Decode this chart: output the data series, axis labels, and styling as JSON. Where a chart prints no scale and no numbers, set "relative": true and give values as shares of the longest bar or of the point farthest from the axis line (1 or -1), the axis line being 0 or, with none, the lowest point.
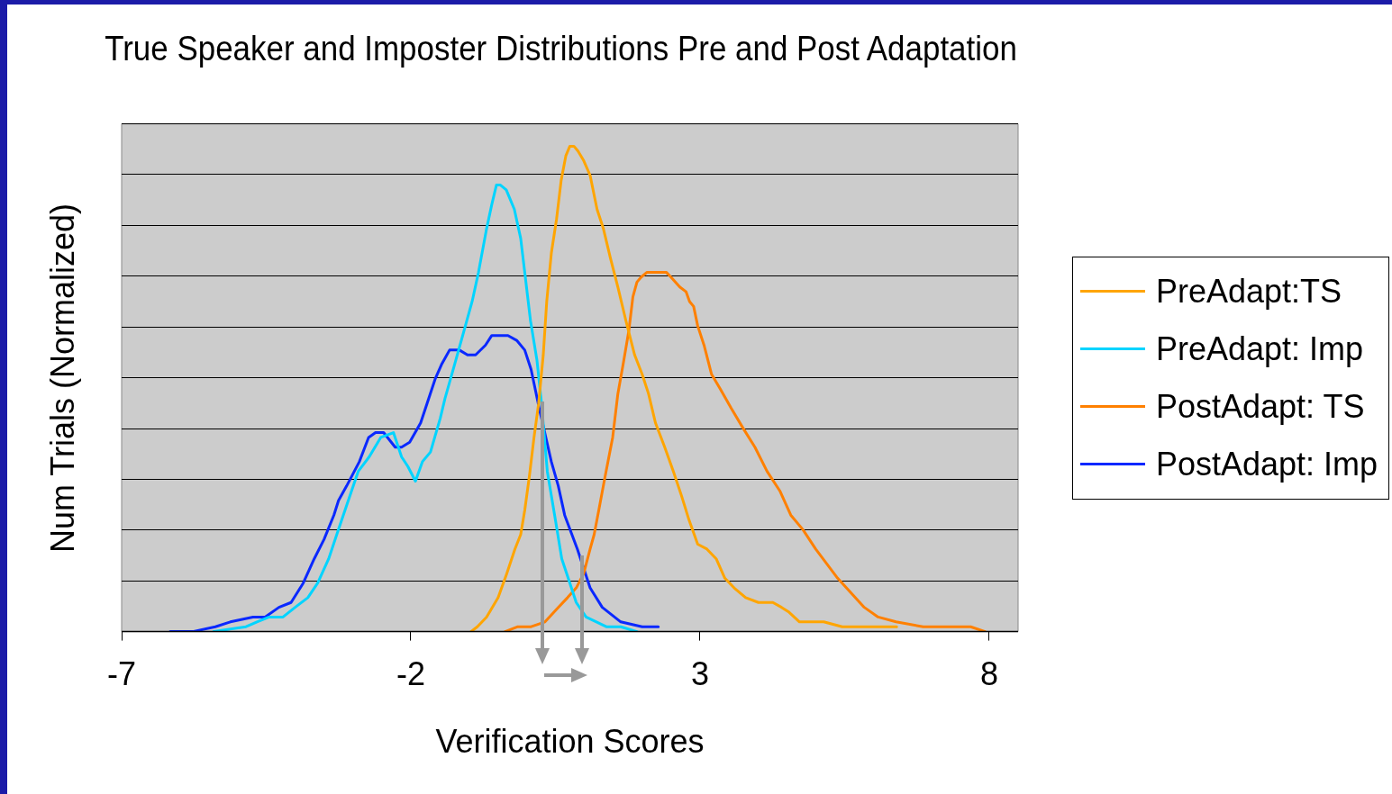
{
  "chart_data": {
    "type": "line",
    "title": "True Speaker and Imposter Distributions Pre and Post Adaptation",
    "xlabel": "Verification Scores",
    "ylabel": "Num Trials (Normalized)",
    "relative": true,
    "xlim": [
      -7,
      8.5
    ],
    "xticks": [
      -7,
      -2,
      3,
      8
    ],
    "grid": "y",
    "legend": "right",
    "marker": "none",
    "line_style": "solid",
    "series": [
      {
        "name": "PreAdapt:TS",
        "color": "#ffa500",
        "x": [
          -0.96,
          -0.85,
          -0.69,
          -0.49,
          -0.34,
          -0.2,
          -0.1,
          -0.03,
          0.05,
          0.13,
          0.21,
          0.29,
          0.35,
          0.43,
          0.52,
          0.6,
          0.68,
          0.75,
          0.82,
          0.89,
          0.99,
          1.1,
          1.22,
          1.33,
          1.45,
          1.58,
          1.72,
          1.87,
          2.0,
          2.11,
          2.23,
          2.39,
          2.54,
          2.68,
          2.81,
          2.96,
          3.12,
          3.28,
          3.43,
          3.59,
          3.79,
          4.01,
          4.26,
          4.41,
          4.54,
          4.72,
          4.91,
          5.14,
          5.46,
          5.77,
          6.08,
          6.23,
          6.4
        ],
        "values": [
          0,
          0.01,
          0.03,
          0.07,
          0.12,
          0.17,
          0.2,
          0.25,
          0.32,
          0.4,
          0.47,
          0.57,
          0.68,
          0.78,
          0.85,
          0.93,
          0.98,
          1,
          1,
          0.99,
          0.97,
          0.94,
          0.87,
          0.83,
          0.77,
          0.71,
          0.64,
          0.57,
          0.53,
          0.49,
          0.43,
          0.38,
          0.33,
          0.28,
          0.23,
          0.18,
          0.17,
          0.15,
          0.11,
          0.09,
          0.07,
          0.06,
          0.06,
          0.05,
          0.04,
          0.02,
          0.02,
          0.02,
          0.01,
          0.01,
          0.01,
          0.01,
          0.01
        ]
      },
      {
        "name": "PreAdapt: Imp",
        "color": "#00d4ff",
        "x": [
          -5.41,
          -4.85,
          -4.66,
          -4.45,
          -4.21,
          -4.0,
          -3.78,
          -3.61,
          -3.42,
          -3.28,
          -3.11,
          -2.91,
          -2.72,
          -2.52,
          -2.3,
          -2.16,
          -2.05,
          -1.92,
          -1.8,
          -1.66,
          -1.49,
          -1.41,
          -1.22,
          -1.08,
          -0.94,
          -0.83,
          -0.69,
          -0.6,
          -0.52,
          -0.45,
          -0.35,
          -0.21,
          -0.1,
          -0.03,
          0.07,
          0.18,
          0.26,
          0.36,
          0.5,
          0.61,
          0.75,
          0.86,
          1.03,
          1.38,
          1.63,
          1.91
        ],
        "values": [
          0,
          0.01,
          0.02,
          0.03,
          0.03,
          0.05,
          0.07,
          0.1,
          0.15,
          0.2,
          0.26,
          0.33,
          0.36,
          0.4,
          0.41,
          0.36,
          0.34,
          0.31,
          0.35,
          0.37,
          0.44,
          0.48,
          0.56,
          0.62,
          0.68,
          0.74,
          0.83,
          0.88,
          0.92,
          0.92,
          0.91,
          0.87,
          0.81,
          0.74,
          0.64,
          0.56,
          0.47,
          0.33,
          0.23,
          0.15,
          0.1,
          0.06,
          0.03,
          0.01,
          0.01,
          0
        ]
      },
      {
        "name": "PostAdapt: TS",
        "color": "#ff8000",
        "x": [
          -0.37,
          -0.15,
          0.08,
          0.32,
          0.55,
          0.71,
          0.86,
          0.99,
          1.1,
          1.17,
          1.25,
          1.36,
          1.49,
          1.58,
          1.67,
          1.77,
          1.84,
          1.91,
          1.98,
          2.08,
          2.42,
          2.5,
          2.65,
          2.76,
          2.82,
          2.89,
          2.96,
          3.07,
          3.2,
          3.35,
          3.54,
          3.74,
          3.95,
          4.16,
          4.38,
          4.57,
          4.78,
          5.0,
          5.19,
          5.38,
          5.61,
          5.84,
          6.08,
          6.39,
          6.86,
          7.17,
          7.48,
          7.68,
          7.93
        ],
        "values": [
          0,
          0.01,
          0.01,
          0.02,
          0.05,
          0.07,
          0.09,
          0.12,
          0.17,
          0.2,
          0.25,
          0.32,
          0.4,
          0.49,
          0.55,
          0.62,
          0.69,
          0.72,
          0.73,
          0.74,
          0.74,
          0.73,
          0.71,
          0.7,
          0.68,
          0.67,
          0.63,
          0.59,
          0.53,
          0.5,
          0.46,
          0.42,
          0.38,
          0.33,
          0.29,
          0.24,
          0.21,
          0.17,
          0.14,
          0.11,
          0.08,
          0.05,
          0.03,
          0.02,
          0.01,
          0.01,
          0.01,
          0.01,
          0
        ]
      },
      {
        "name": "PostAdapt: Imp",
        "color": "#0a28ff",
        "x": [
          -6.16,
          -5.77,
          -5.38,
          -5.12,
          -4.73,
          -4.52,
          -4.28,
          -4.07,
          -3.86,
          -3.67,
          -3.5,
          -3.33,
          -3.25,
          -3.11,
          -2.89,
          -2.73,
          -2.61,
          -2.47,
          -2.27,
          -2.16,
          -2.02,
          -1.83,
          -1.58,
          -1.47,
          -1.33,
          -1.16,
          -1.02,
          -0.88,
          -0.71,
          -0.6,
          -0.41,
          -0.32,
          -0.17,
          -0.03,
          0.08,
          0.22,
          0.43,
          0.55,
          0.66,
          0.88,
          1.1,
          1.31,
          1.63,
          2.0,
          2.28
        ],
        "values": [
          0,
          0,
          0.01,
          0.02,
          0.03,
          0.03,
          0.05,
          0.06,
          0.1,
          0.15,
          0.19,
          0.24,
          0.27,
          0.3,
          0.35,
          0.4,
          0.41,
          0.41,
          0.38,
          0.38,
          0.39,
          0.43,
          0.52,
          0.55,
          0.58,
          0.58,
          0.57,
          0.57,
          0.59,
          0.61,
          0.61,
          0.61,
          0.6,
          0.58,
          0.54,
          0.46,
          0.35,
          0.3,
          0.24,
          0.17,
          0.09,
          0.05,
          0.02,
          0.01,
          0.01
        ]
      }
    ]
  }
}
